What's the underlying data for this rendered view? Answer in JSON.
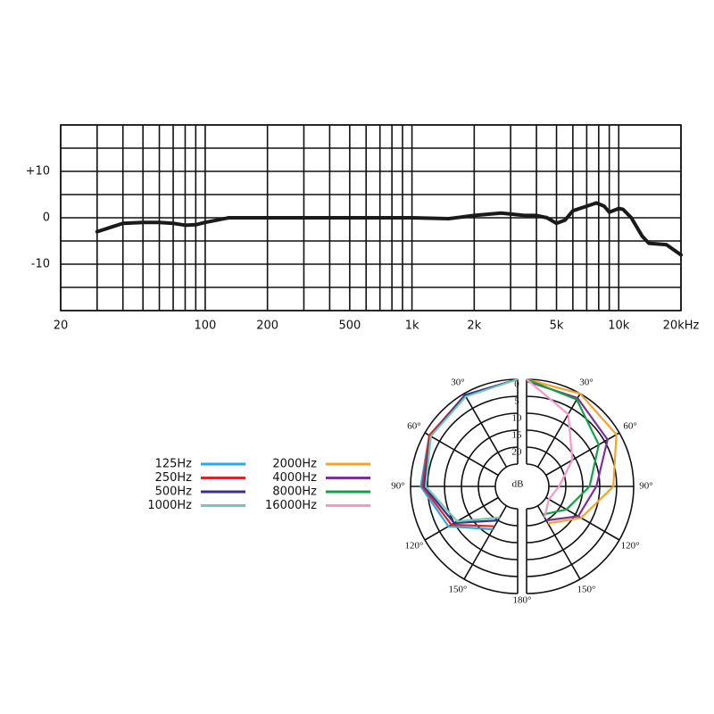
{
  "chart_data": [
    {
      "type": "line",
      "xscale": "log",
      "xlim": [
        20,
        20000
      ],
      "ylim": [
        -20,
        20
      ],
      "xticks": [
        20,
        100,
        200,
        500,
        {
          "value": 1000,
          "label": "1k"
        },
        {
          "value": 2000,
          "label": "2k"
        },
        {
          "value": 5000,
          "label": "5k"
        },
        {
          "value": 10000,
          "label": "10k"
        },
        {
          "value": 20000,
          "label": "20kHz"
        }
      ],
      "yticks": [
        {
          "value": 10,
          "label": "+10"
        },
        0,
        -10
      ],
      "xgrid": [
        30,
        40,
        50,
        60,
        70,
        80,
        90,
        300,
        400,
        600,
        700,
        800,
        900,
        3000,
        4000,
        6000,
        7000,
        8000,
        9000
      ],
      "ygrid": [
        -20,
        -15,
        -5,
        5,
        15,
        20
      ],
      "color": "#1a1a1a",
      "x": [
        30,
        40,
        50,
        60,
        70,
        80,
        90,
        100,
        130,
        200,
        500,
        1000,
        1500,
        2000,
        2700,
        3500,
        4000,
        4500,
        5000,
        5500,
        6000,
        7000,
        7800,
        8500,
        9000,
        10000,
        10500,
        11500,
        13000,
        14000,
        17000,
        20000
      ],
      "values": [
        -3,
        -1.2,
        -1,
        -1,
        -1.2,
        -1.6,
        -1.5,
        -1,
        0,
        0,
        0,
        0,
        -0.2,
        0.5,
        1,
        0.5,
        0.5,
        0,
        -1.2,
        -0.5,
        1.5,
        2.5,
        3.2,
        2.5,
        1.2,
        2,
        1.8,
        0,
        -4,
        -5.5,
        -5.8,
        -8
      ]
    },
    {
      "type": "polar",
      "angles": [
        0,
        30,
        60,
        90,
        120,
        150,
        180
      ],
      "rlim": [
        25,
        0
      ],
      "rticks": [
        0,
        5,
        10,
        15,
        20,
        25
      ],
      "r_label": "dB",
      "angle_ticks": [
        {
          "value": 30,
          "label": "30°"
        },
        {
          "value": 60,
          "label": "60°"
        },
        {
          "value": 90,
          "label": "90°"
        },
        {
          "value": 120,
          "label": "120°"
        },
        {
          "value": 150,
          "label": "150°"
        },
        {
          "value": 180,
          "label": "180°"
        }
      ],
      "series": [
        {
          "name": "125Hz",
          "color": "#27a9e1",
          "side": "left",
          "values": [
            0,
            0.5,
            1.5,
            3,
            8,
            17,
            null
          ]
        },
        {
          "name": "250Hz",
          "color": "#d7262e",
          "side": "left",
          "values": [
            0,
            0.5,
            1.5,
            3.5,
            9,
            18,
            null
          ]
        },
        {
          "name": "500Hz",
          "color": "#3a2f8f",
          "side": "left",
          "values": [
            0,
            0.5,
            2,
            4,
            10,
            20,
            null
          ]
        },
        {
          "name": "1000Hz",
          "color": "#6fc9b5",
          "side": "left",
          "values": [
            0,
            1,
            2,
            4.5,
            11,
            21,
            null
          ]
        },
        {
          "name": "2000Hz",
          "color": "#f0a531",
          "side": "right",
          "values": [
            0,
            0,
            1,
            6,
            13,
            19,
            null
          ]
        },
        {
          "name": "4000Hz",
          "color": "#7b3294",
          "side": "right",
          "values": [
            0.5,
            1.5,
            4,
            11,
            14,
            20,
            null
          ]
        },
        {
          "name": "8000Hz",
          "color": "#14a04a",
          "side": "right",
          "values": [
            0,
            2,
            7,
            13,
            18,
            22,
            null
          ]
        },
        {
          "name": "16000Hz",
          "color": "#f29ac7",
          "side": "right",
          "values": [
            0,
            7,
            16,
            22,
            24,
            21,
            null
          ]
        }
      ]
    }
  ]
}
